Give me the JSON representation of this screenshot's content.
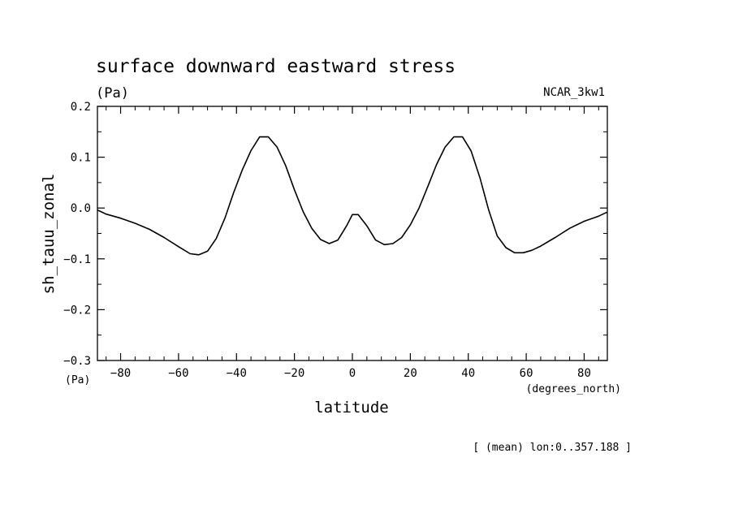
{
  "chart_data": {
    "type": "line",
    "title": "surface downward eastward stress",
    "subtitle_units": "(Pa)",
    "model_label": "NCAR_3kw1",
    "ylabel": "sh_tauu_zonal",
    "xlabel": "latitude",
    "x_units": "(degrees_north)",
    "y_units_corner": "(Pa)",
    "footnote": "[ (mean) lon:0..357.188 ]",
    "xlim": [
      -88,
      88
    ],
    "ylim": [
      -0.3,
      0.2
    ],
    "x_ticks": [
      -80,
      -60,
      -40,
      -20,
      0,
      20,
      40,
      60,
      80
    ],
    "x_tick_labels": [
      "−80",
      "−60",
      "−40",
      "−20",
      "0",
      "20",
      "40",
      "60",
      "80"
    ],
    "y_ticks": [
      0.2,
      0.1,
      0.0,
      -0.1,
      -0.2,
      -0.3
    ],
    "y_tick_labels": [
      "0.2",
      "0.1",
      "0.0",
      "−0.1",
      "−0.2",
      "−0.3"
    ],
    "grid": false,
    "line_color": "#000000",
    "series": [
      {
        "x": [
          -88,
          -85,
          -80,
          -75,
          -70,
          -65,
          -60,
          -56,
          -53,
          -50,
          -47,
          -44,
          -41,
          -38,
          -35,
          -32,
          -29,
          -26,
          -23,
          -20,
          -17,
          -14,
          -11,
          -8,
          -5,
          -2,
          0,
          2,
          5,
          8,
          11,
          14,
          17,
          20,
          23,
          26,
          29,
          32,
          35,
          38,
          41,
          44,
          47,
          50,
          53,
          56,
          59,
          62,
          65,
          70,
          75,
          80,
          85,
          88
        ],
        "y": [
          -0.004,
          -0.012,
          -0.02,
          -0.03,
          -0.042,
          -0.058,
          -0.076,
          -0.09,
          -0.092,
          -0.085,
          -0.06,
          -0.02,
          0.03,
          0.075,
          0.113,
          0.14,
          0.14,
          0.12,
          0.083,
          0.036,
          -0.007,
          -0.04,
          -0.062,
          -0.07,
          -0.063,
          -0.035,
          -0.013,
          -0.013,
          -0.035,
          -0.063,
          -0.072,
          -0.07,
          -0.058,
          -0.033,
          0.0,
          0.042,
          0.085,
          0.12,
          0.14,
          0.14,
          0.112,
          0.06,
          -0.003,
          -0.055,
          -0.078,
          -0.088,
          -0.088,
          -0.083,
          -0.075,
          -0.058,
          -0.04,
          -0.026,
          -0.016,
          -0.008
        ]
      }
    ]
  }
}
